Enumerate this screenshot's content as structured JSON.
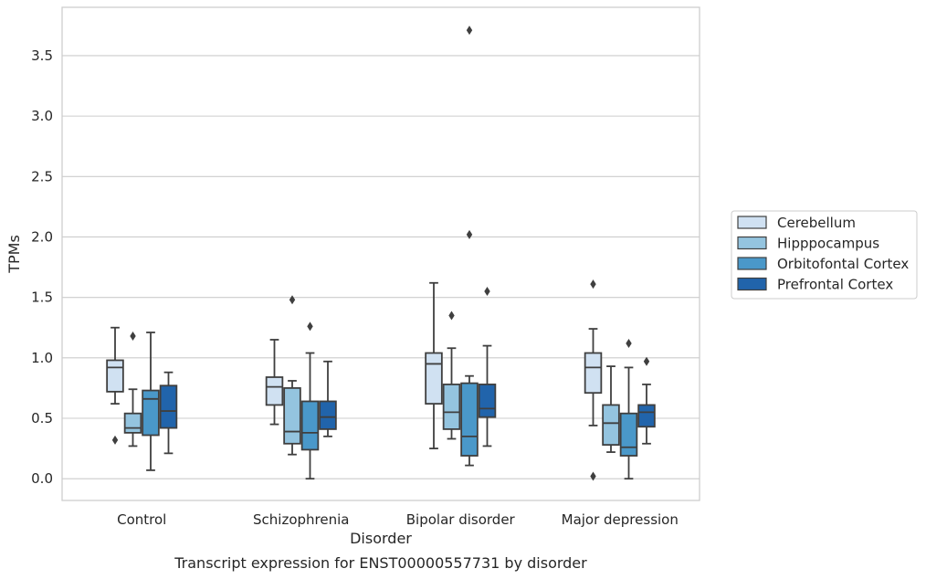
{
  "caption": "Transcript expression for ENST00000557731 by disorder",
  "chart_data": {
    "type": "boxplot",
    "xlabel": "Disorder",
    "ylabel": "TPMs",
    "ylim": [
      -0.18,
      3.9
    ],
    "yticks": [
      "0.0",
      "0.5",
      "1.0",
      "1.5",
      "2.0",
      "2.5",
      "3.0",
      "3.5"
    ],
    "categories": [
      "Control",
      "Schizophrenia",
      "Bipolar disorder",
      "Major depression"
    ],
    "grid": "horizontal",
    "legend_position": "right",
    "series": [
      {
        "name": "Cerebellum",
        "color": "#d0e1f2",
        "boxes": [
          {
            "whislo": 0.62,
            "q1": 0.72,
            "med": 0.92,
            "q3": 0.98,
            "whishi": 1.25,
            "fliers": [
              0.32
            ]
          },
          {
            "whislo": 0.45,
            "q1": 0.61,
            "med": 0.76,
            "q3": 0.84,
            "whishi": 1.15,
            "fliers": []
          },
          {
            "whislo": 0.25,
            "q1": 0.62,
            "med": 0.95,
            "q3": 1.04,
            "whishi": 1.62,
            "fliers": []
          },
          {
            "whislo": 0.44,
            "q1": 0.71,
            "med": 0.92,
            "q3": 1.04,
            "whishi": 1.24,
            "fliers": [
              1.61,
              0.02
            ]
          }
        ]
      },
      {
        "name": "Hipppocampus",
        "color": "#94c4df",
        "boxes": [
          {
            "whislo": 0.27,
            "q1": 0.38,
            "med": 0.42,
            "q3": 0.54,
            "whishi": 0.74,
            "fliers": [
              1.18
            ]
          },
          {
            "whislo": 0.2,
            "q1": 0.29,
            "med": 0.39,
            "q3": 0.75,
            "whishi": 0.81,
            "fliers": [
              1.48
            ]
          },
          {
            "whislo": 0.33,
            "q1": 0.41,
            "med": 0.55,
            "q3": 0.78,
            "whishi": 1.08,
            "fliers": [
              1.35
            ]
          },
          {
            "whislo": 0.22,
            "q1": 0.28,
            "med": 0.46,
            "q3": 0.61,
            "whishi": 0.93,
            "fliers": []
          }
        ]
      },
      {
        "name": "Orbitofontal Cortex",
        "color": "#4a98c9",
        "boxes": [
          {
            "whislo": 0.07,
            "q1": 0.36,
            "med": 0.66,
            "q3": 0.73,
            "whishi": 1.21,
            "fliers": []
          },
          {
            "whislo": 0.0,
            "q1": 0.24,
            "med": 0.38,
            "q3": 0.64,
            "whishi": 1.04,
            "fliers": [
              1.26
            ]
          },
          {
            "whislo": 0.11,
            "q1": 0.19,
            "med": 0.35,
            "q3": 0.79,
            "whishi": 0.85,
            "fliers": [
              2.02,
              3.71
            ]
          },
          {
            "whislo": 0.0,
            "q1": 0.19,
            "med": 0.26,
            "q3": 0.54,
            "whishi": 0.92,
            "fliers": [
              1.12
            ]
          }
        ]
      },
      {
        "name": "Prefrontal Cortex",
        "color": "#2164ab",
        "boxes": [
          {
            "whislo": 0.21,
            "q1": 0.42,
            "med": 0.56,
            "q3": 0.77,
            "whishi": 0.88,
            "fliers": []
          },
          {
            "whislo": 0.35,
            "q1": 0.41,
            "med": 0.51,
            "q3": 0.64,
            "whishi": 0.97,
            "fliers": []
          },
          {
            "whislo": 0.27,
            "q1": 0.51,
            "med": 0.58,
            "q3": 0.78,
            "whishi": 1.1,
            "fliers": [
              1.55
            ]
          },
          {
            "whislo": 0.29,
            "q1": 0.43,
            "med": 0.55,
            "q3": 0.61,
            "whishi": 0.78,
            "fliers": [
              0.97
            ]
          }
        ]
      }
    ]
  }
}
